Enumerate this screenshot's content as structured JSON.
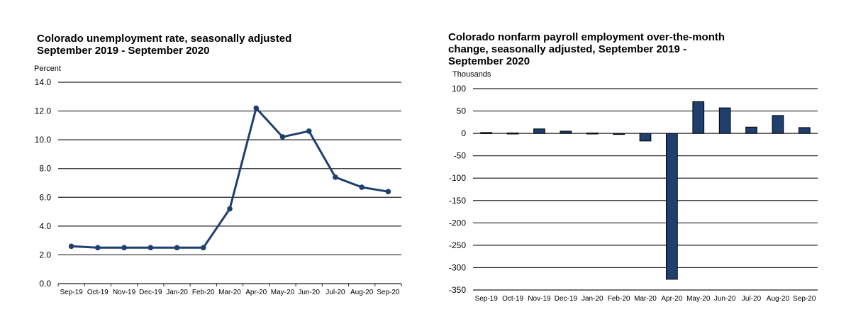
{
  "chart_data": [
    {
      "type": "line",
      "title": "Colorado unemployment rate, seasonally adjusted",
      "subtitle": "September 2019 - September 2020",
      "ylabel": "Percent",
      "categories": [
        "Sep-19",
        "Oct-19",
        "Nov-19",
        "Dec-19",
        "Jan-20",
        "Feb-20",
        "Mar-20",
        "Apr-20",
        "May-20",
        "Jun-20",
        "Jul-20",
        "Aug-20",
        "Sep-20"
      ],
      "values": [
        2.6,
        2.5,
        2.5,
        2.5,
        2.5,
        2.5,
        5.2,
        12.2,
        10.2,
        10.6,
        7.4,
        6.7,
        6.4
      ],
      "ylim": [
        0,
        14
      ],
      "yticks": [
        "0.0",
        "2.0",
        "4.0",
        "6.0",
        "8.0",
        "10.0",
        "12.0",
        "14.0"
      ],
      "grid": true,
      "color": "#1f3f6e"
    },
    {
      "type": "bar",
      "title": "Colorado nonfarm payroll employment over-the-month change, seasonally adjusted, September 2019 - September 2020",
      "title_lines": [
        "Colorado nonfarm payroll employment over-the-month",
        "change, seasonally adjusted, September 2019 -",
        "September 2020"
      ],
      "ylabel": "Thousands",
      "categories": [
        "Sep-19",
        "Oct-19",
        "Nov-19",
        "Dec-19",
        "Jan-20",
        "Feb-20",
        "Mar-20",
        "Apr-20",
        "May-20",
        "Jun-20",
        "Jul-20",
        "Aug-20",
        "Sep-20"
      ],
      "values": [
        2,
        1,
        10,
        5,
        1,
        -1,
        -17,
        -326,
        71,
        57,
        14,
        40,
        13
      ],
      "ylim": [
        -350,
        100
      ],
      "yticks": [
        "-350",
        "-300",
        "-250",
        "-200",
        "-150",
        "-100",
        "-50",
        "0",
        "50",
        "100"
      ],
      "grid": true,
      "color": "#1f3f6e"
    }
  ]
}
